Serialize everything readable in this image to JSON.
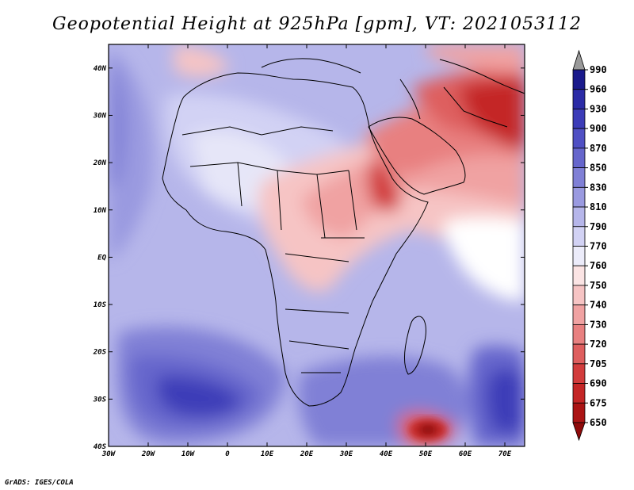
{
  "title": "Geopotential Height at 925hPa [gpm], VT: 2021053112",
  "credit": "GrADS: IGES/COLA",
  "lat_ticks": [
    "40N",
    "30N",
    "20N",
    "10N",
    "EQ",
    "10S",
    "20S",
    "30S",
    "40S"
  ],
  "lon_ticks": [
    "30W",
    "20W",
    "10W",
    "0",
    "10E",
    "20E",
    "30E",
    "40E",
    "50E",
    "60E",
    "70E"
  ],
  "colorbar": {
    "levels": [
      "990",
      "960",
      "930",
      "900",
      "870",
      "850",
      "830",
      "810",
      "790",
      "770",
      "760",
      "750",
      "740",
      "730",
      "720",
      "705",
      "690",
      "675",
      "650"
    ],
    "colors": [
      "#9a9a9a",
      "#1a1a8c",
      "#2b2ba6",
      "#3c3cb8",
      "#5050c4",
      "#6666cc",
      "#8080d6",
      "#9a9ae0",
      "#b6b6ea",
      "#d2d2f4",
      "#ececfa",
      "#fbe4e4",
      "#f6c4c4",
      "#f0a2a2",
      "#e88080",
      "#de5e5e",
      "#d23c3c",
      "#c42626",
      "#ab1414",
      "#8f0a0a"
    ]
  }
}
